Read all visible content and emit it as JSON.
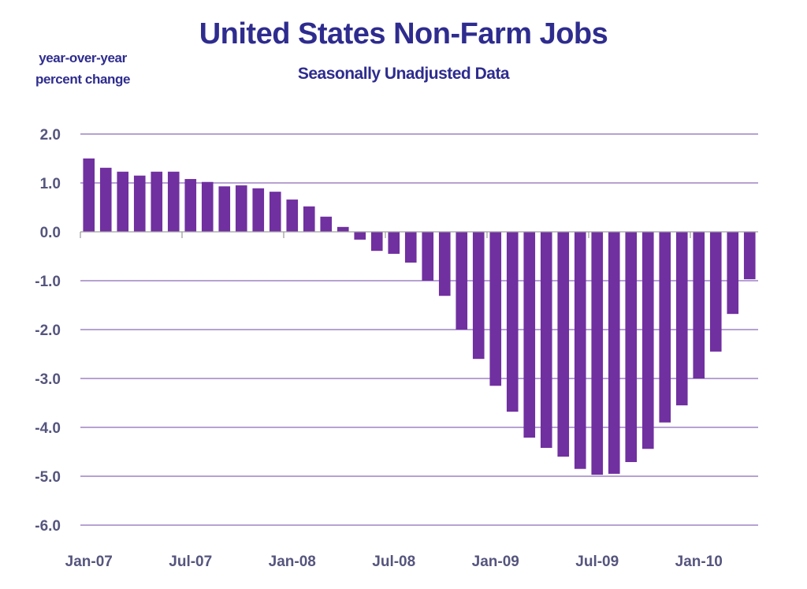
{
  "chart_data": {
    "type": "bar",
    "title": "United States Non-Farm Jobs",
    "subtitle": "Seasonally Unadjusted Data",
    "ylabel_lines": [
      "year-over-year",
      "percent change"
    ],
    "xlabel": "",
    "ylim": [
      -6.0,
      2.0
    ],
    "yticks": [
      2.0,
      1.0,
      0.0,
      -1.0,
      -2.0,
      -3.0,
      -4.0,
      -5.0,
      -6.0
    ],
    "ytick_labels": [
      "2.0",
      "1.0",
      "0.0",
      "-1.0",
      "-2.0",
      "-3.0",
      "-4.0",
      "-5.0",
      "-6.0"
    ],
    "grid": true,
    "legend": "none",
    "bar_color": "#7030a0",
    "grid_color": "#8a6bb8",
    "text_color": "#55557e",
    "title_color": "#2e2c8e",
    "xtick_labels": [
      {
        "index": 0,
        "label": "Jan-07"
      },
      {
        "index": 6,
        "label": "Jul-07"
      },
      {
        "index": 12,
        "label": "Jan-08"
      },
      {
        "index": 18,
        "label": "Jul-08"
      },
      {
        "index": 24,
        "label": "Jan-09"
      },
      {
        "index": 30,
        "label": "Jul-09"
      },
      {
        "index": 36,
        "label": "Jan-10"
      }
    ],
    "categories": [
      "Jan-07",
      "Feb-07",
      "Mar-07",
      "Apr-07",
      "May-07",
      "Jun-07",
      "Jul-07",
      "Aug-07",
      "Sep-07",
      "Oct-07",
      "Nov-07",
      "Dec-07",
      "Jan-08",
      "Feb-08",
      "Mar-08",
      "Apr-08",
      "May-08",
      "Jun-08",
      "Jul-08",
      "Aug-08",
      "Sep-08",
      "Oct-08",
      "Nov-08",
      "Dec-08",
      "Jan-09",
      "Feb-09",
      "Mar-09",
      "Apr-09",
      "May-09",
      "Jun-09",
      "Jul-09",
      "Aug-09",
      "Sep-09",
      "Oct-09",
      "Nov-09",
      "Dec-09",
      "Jan-10",
      "Feb-10",
      "Mar-10",
      "Apr-10"
    ],
    "values": [
      1.5,
      1.31,
      1.23,
      1.15,
      1.23,
      1.23,
      1.08,
      1.02,
      0.93,
      0.95,
      0.89,
      0.82,
      0.66,
      0.52,
      0.31,
      0.1,
      -0.16,
      -0.39,
      -0.45,
      -0.63,
      -1.0,
      -1.31,
      -2.0,
      -2.6,
      -3.15,
      -3.68,
      -4.21,
      -4.42,
      -4.6,
      -4.85,
      -4.97,
      -4.95,
      -4.71,
      -4.44,
      -3.9,
      -3.55,
      -3.0,
      -2.45,
      -1.68,
      -0.97
    ]
  }
}
